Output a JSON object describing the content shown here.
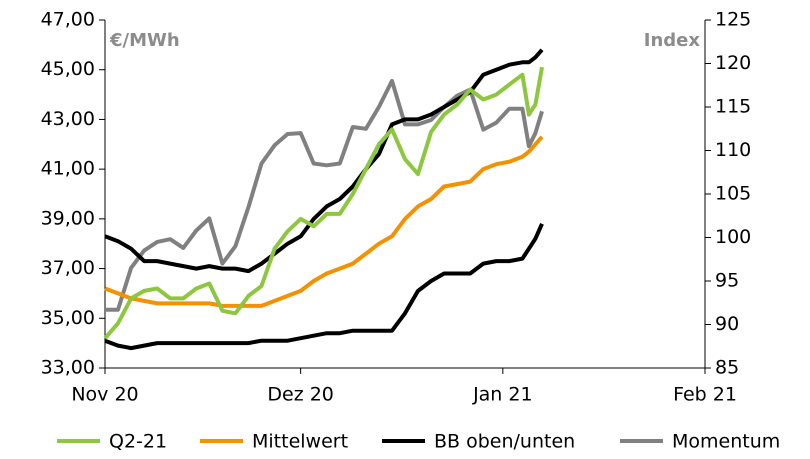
{
  "chart_data": {
    "type": "line",
    "y_unit_label": "€/MWh",
    "y2_unit_label": "Index",
    "xlim": [
      0,
      92
    ],
    "xticks": [
      {
        "value": 0,
        "label": "Nov 20"
      },
      {
        "value": 30,
        "label": "Dez 20"
      },
      {
        "value": 61,
        "label": "Jan 21"
      },
      {
        "value": 92,
        "label": "Feb 21"
      }
    ],
    "ylim": [
      33,
      47
    ],
    "yticks": [
      {
        "value": 33,
        "label": "33,00"
      },
      {
        "value": 35,
        "label": "35,00"
      },
      {
        "value": 37,
        "label": "37,00"
      },
      {
        "value": 39,
        "label": "39,00"
      },
      {
        "value": 41,
        "label": "41,00"
      },
      {
        "value": 43,
        "label": "43,00"
      },
      {
        "value": 45,
        "label": "45,00"
      },
      {
        "value": 47,
        "label": "47,00"
      }
    ],
    "y2lim": [
      85,
      125
    ],
    "y2ticks": [
      85,
      90,
      95,
      100,
      105,
      110,
      115,
      120,
      125
    ],
    "x": [
      0,
      2,
      4,
      6,
      8,
      10,
      12,
      14,
      16,
      18,
      20,
      22,
      24,
      26,
      28,
      30,
      32,
      34,
      36,
      38,
      40,
      42,
      44,
      46,
      48,
      50,
      52,
      54,
      56,
      58,
      60,
      62,
      64,
      65,
      66,
      67
    ],
    "series": [
      {
        "name": "Q2-21",
        "color": "#8dc63f",
        "values": [
          34.2,
          34.8,
          35.8,
          36.1,
          36.2,
          35.8,
          35.8,
          36.2,
          36.4,
          35.3,
          35.2,
          35.9,
          36.3,
          37.8,
          38.5,
          39.0,
          38.7,
          39.2,
          39.2,
          40.0,
          41.0,
          42.0,
          42.6,
          41.4,
          40.8,
          42.5,
          43.2,
          43.6,
          44.2,
          43.8,
          44.0,
          44.4,
          44.8,
          43.2,
          43.6,
          45.1
        ]
      },
      {
        "name": "Mittelwert",
        "color": "#f39200",
        "values": [
          36.2,
          36.0,
          35.8,
          35.7,
          35.6,
          35.6,
          35.6,
          35.6,
          35.6,
          35.5,
          35.5,
          35.5,
          35.5,
          35.7,
          35.9,
          36.1,
          36.5,
          36.8,
          37.0,
          37.2,
          37.6,
          38.0,
          38.3,
          39.0,
          39.5,
          39.8,
          40.3,
          40.4,
          40.5,
          41.0,
          41.2,
          41.3,
          41.5,
          41.7,
          42.0,
          42.3
        ]
      },
      {
        "name": "BB oben/unten",
        "color": "#000000",
        "values": [
          38.3,
          38.1,
          37.8,
          37.3,
          37.3,
          37.2,
          37.1,
          37.0,
          37.1,
          37.0,
          37.0,
          36.9,
          37.2,
          37.6,
          38.0,
          38.3,
          39.0,
          39.5,
          39.8,
          40.3,
          41.0,
          41.6,
          42.8,
          43.0,
          43.0,
          43.2,
          43.5,
          43.8,
          44.1,
          44.8,
          45.0,
          45.2,
          45.3,
          45.3,
          45.5,
          45.8
        ],
        "values_lower": [
          34.1,
          33.9,
          33.8,
          33.9,
          34.0,
          34.0,
          34.0,
          34.0,
          34.0,
          34.0,
          34.0,
          34.0,
          34.1,
          34.1,
          34.1,
          34.2,
          34.3,
          34.4,
          34.4,
          34.5,
          34.5,
          34.5,
          34.5,
          35.2,
          36.1,
          36.5,
          36.8,
          36.8,
          36.8,
          37.2,
          37.3,
          37.3,
          37.4,
          37.8,
          38.2,
          38.8
        ]
      },
      {
        "name": "Momentum",
        "color": "#808080",
        "axis": "y2",
        "values": [
          91.7,
          91.7,
          96.5,
          98.5,
          99.5,
          99.8,
          98.8,
          100.8,
          102.2,
          97.0,
          99.0,
          103.5,
          108.5,
          110.6,
          111.9,
          112.0,
          108.5,
          108.3,
          108.5,
          112.7,
          112.5,
          115.0,
          118.0,
          113.0,
          113.0,
          113.5,
          115.0,
          116.3,
          117.0,
          112.4,
          113.2,
          114.8,
          114.8,
          110.5,
          112.0,
          114.5
        ]
      }
    ]
  }
}
